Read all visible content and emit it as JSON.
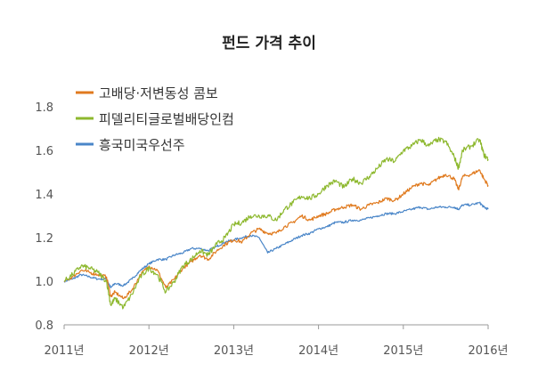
{
  "chart_data": {
    "type": "line",
    "title": "펀드 가격 추이",
    "xlabel": "",
    "ylabel": "",
    "x_ticks": [
      "2011년",
      "2012년",
      "2013년",
      "2014년",
      "2015년",
      "2016년"
    ],
    "y_ticks": [
      "0.8",
      "1.0",
      "1.2",
      "1.4",
      "1.6",
      "1.8"
    ],
    "xlim": [
      2011.0,
      2016.0
    ],
    "ylim": [
      0.8,
      1.8
    ],
    "grid": false,
    "legend_position": "top-left",
    "series": [
      {
        "name": "고배당·저변동성 콤보",
        "color": "#e07a1e",
        "x": [
          2011.0,
          2011.1,
          2011.2,
          2011.3,
          2011.4,
          2011.5,
          2011.55,
          2011.6,
          2011.7,
          2011.8,
          2011.9,
          2012.0,
          2012.1,
          2012.2,
          2012.3,
          2012.4,
          2012.5,
          2012.6,
          2012.7,
          2012.8,
          2012.9,
          2013.0,
          2013.1,
          2013.2,
          2013.3,
          2013.4,
          2013.5,
          2013.6,
          2013.7,
          2013.8,
          2013.9,
          2014.0,
          2014.1,
          2014.2,
          2014.3,
          2014.4,
          2014.5,
          2014.6,
          2014.7,
          2014.8,
          2014.9,
          2015.0,
          2015.1,
          2015.2,
          2015.3,
          2015.4,
          2015.5,
          2015.6,
          2015.65,
          2015.7,
          2015.8,
          2015.9,
          2015.95,
          2016.0
        ],
        "values": [
          1.0,
          1.02,
          1.05,
          1.04,
          1.03,
          1.02,
          0.93,
          0.95,
          0.92,
          0.96,
          1.03,
          1.07,
          1.05,
          0.97,
          1.01,
          1.06,
          1.09,
          1.12,
          1.1,
          1.14,
          1.17,
          1.19,
          1.18,
          1.22,
          1.24,
          1.22,
          1.22,
          1.25,
          1.27,
          1.3,
          1.28,
          1.3,
          1.31,
          1.33,
          1.34,
          1.35,
          1.33,
          1.35,
          1.36,
          1.38,
          1.37,
          1.4,
          1.43,
          1.45,
          1.44,
          1.47,
          1.49,
          1.47,
          1.42,
          1.48,
          1.49,
          1.51,
          1.47,
          1.44
        ]
      },
      {
        "name": "피델리티글로벌배당인컴",
        "color": "#8db82e",
        "x": [
          2011.0,
          2011.1,
          2011.2,
          2011.3,
          2011.4,
          2011.5,
          2011.55,
          2011.6,
          2011.7,
          2011.8,
          2011.9,
          2012.0,
          2012.1,
          2012.2,
          2012.3,
          2012.4,
          2012.5,
          2012.6,
          2012.7,
          2012.8,
          2012.9,
          2013.0,
          2013.1,
          2013.2,
          2013.3,
          2013.4,
          2013.5,
          2013.6,
          2013.7,
          2013.8,
          2013.9,
          2014.0,
          2014.1,
          2014.2,
          2014.3,
          2014.4,
          2014.5,
          2014.6,
          2014.7,
          2014.8,
          2014.9,
          2015.0,
          2015.1,
          2015.2,
          2015.3,
          2015.4,
          2015.5,
          2015.6,
          2015.65,
          2015.7,
          2015.8,
          2015.9,
          2015.95,
          2016.0
        ],
        "values": [
          1.0,
          1.03,
          1.07,
          1.06,
          1.04,
          1.0,
          0.89,
          0.92,
          0.88,
          0.94,
          1.02,
          1.06,
          1.03,
          0.95,
          1.0,
          1.07,
          1.1,
          1.14,
          1.12,
          1.17,
          1.2,
          1.26,
          1.27,
          1.3,
          1.3,
          1.3,
          1.28,
          1.33,
          1.36,
          1.39,
          1.38,
          1.4,
          1.44,
          1.46,
          1.43,
          1.47,
          1.45,
          1.48,
          1.52,
          1.56,
          1.55,
          1.6,
          1.62,
          1.65,
          1.62,
          1.65,
          1.64,
          1.57,
          1.52,
          1.6,
          1.62,
          1.65,
          1.58,
          1.56
        ]
      },
      {
        "name": "흥국미국우선주",
        "color": "#4a86c8",
        "x": [
          2011.0,
          2011.1,
          2011.2,
          2011.3,
          2011.4,
          2011.5,
          2011.55,
          2011.6,
          2011.7,
          2011.8,
          2011.9,
          2012.0,
          2012.1,
          2012.2,
          2012.3,
          2012.4,
          2012.5,
          2012.6,
          2012.7,
          2012.8,
          2012.9,
          2013.0,
          2013.1,
          2013.2,
          2013.3,
          2013.4,
          2013.5,
          2013.6,
          2013.7,
          2013.8,
          2013.9,
          2014.0,
          2014.1,
          2014.2,
          2014.3,
          2014.4,
          2014.5,
          2014.6,
          2014.7,
          2014.8,
          2014.9,
          2015.0,
          2015.1,
          2015.2,
          2015.3,
          2015.4,
          2015.5,
          2015.6,
          2015.65,
          2015.7,
          2015.8,
          2015.9,
          2015.95,
          2016.0
        ],
        "values": [
          1.0,
          1.01,
          1.03,
          1.02,
          1.01,
          1.01,
          0.97,
          0.99,
          0.98,
          1.01,
          1.05,
          1.08,
          1.1,
          1.1,
          1.12,
          1.13,
          1.15,
          1.15,
          1.14,
          1.16,
          1.18,
          1.19,
          1.2,
          1.21,
          1.2,
          1.13,
          1.15,
          1.17,
          1.19,
          1.21,
          1.22,
          1.24,
          1.25,
          1.27,
          1.27,
          1.28,
          1.28,
          1.29,
          1.3,
          1.31,
          1.31,
          1.32,
          1.33,
          1.34,
          1.33,
          1.34,
          1.34,
          1.34,
          1.33,
          1.35,
          1.35,
          1.36,
          1.34,
          1.33
        ]
      }
    ]
  }
}
